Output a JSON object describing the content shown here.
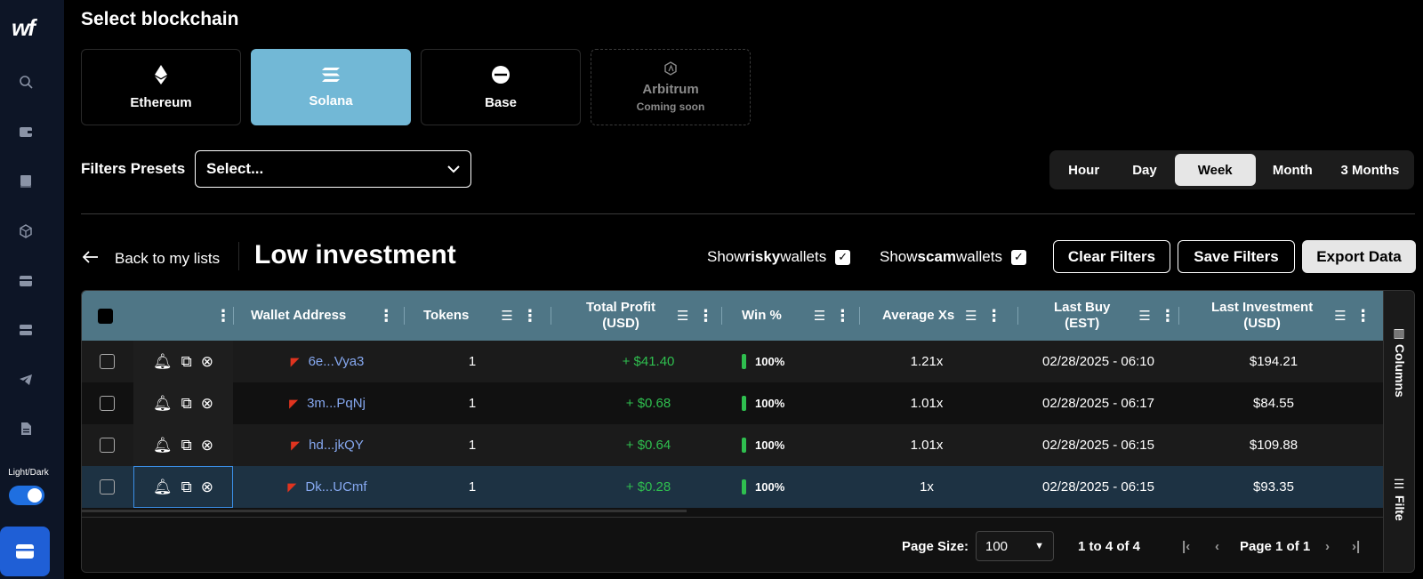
{
  "sidebar": {
    "logo": "wf",
    "icons": [
      "search-icon",
      "wallet-icon",
      "book-icon",
      "cube-icon",
      "card-icon",
      "server-icon",
      "telegram-icon",
      "document-icon"
    ],
    "theme_label": "Light/Dark"
  },
  "blockchain": {
    "heading": "Select blockchain",
    "cards": [
      {
        "label": "Ethereum",
        "icon": "ethereum-icon"
      },
      {
        "label": "Solana",
        "icon": "solana-icon",
        "active": true
      },
      {
        "label": "Base",
        "icon": "base-icon"
      },
      {
        "label": "Arbitrum",
        "sub": "Coming soon",
        "icon": "arbitrum-icon"
      }
    ]
  },
  "filters": {
    "presets_label": "Filters Presets",
    "preset_value": "Select..."
  },
  "time_range": {
    "options": [
      "Hour",
      "Day",
      "Week",
      "Month",
      "3 Months"
    ],
    "active": "Week"
  },
  "list": {
    "back_label": "Back to my lists",
    "title": "Low investment",
    "show_risky_prefix": "Show ",
    "show_risky_bold": "risky",
    "show_risky_suffix": " wallets",
    "show_scam_prefix": "Show ",
    "show_scam_bold": "scam",
    "show_scam_suffix": " wallets",
    "clear_filters": "Clear Filters",
    "save_filters": "Save Filters",
    "export_data": "Export Data"
  },
  "table": {
    "headers": {
      "wallet": "Wallet Address",
      "tokens": "Tokens",
      "profit_1": "Total Profit",
      "profit_2": "(USD)",
      "win": "Win %",
      "avg": "Average Xs",
      "lastbuy_1": "Last Buy",
      "lastbuy_2": "(EST)",
      "lastinv_1": "Last Investment",
      "lastinv_2": "(USD)"
    },
    "rows": [
      {
        "address": "6e...Vya3",
        "tokens": "1",
        "profit": "+ $41.40",
        "win": "100%",
        "avg": "1.21x",
        "last_buy": "02/28/2025 - 06:10",
        "last_investment": "$194.21"
      },
      {
        "address": "3m...PqNj",
        "tokens": "1",
        "profit": "+ $0.68",
        "win": "100%",
        "avg": "1.01x",
        "last_buy": "02/28/2025 - 06:17",
        "last_investment": "$84.55"
      },
      {
        "address": "hd...jkQY",
        "tokens": "1",
        "profit": "+ $0.64",
        "win": "100%",
        "avg": "1.01x",
        "last_buy": "02/28/2025 - 06:15",
        "last_investment": "$109.88"
      },
      {
        "address": "Dk...UCmf",
        "tokens": "1",
        "profit": "+ $0.28",
        "win": "100%",
        "avg": "1x",
        "last_buy": "02/28/2025 - 06:15",
        "last_investment": "$93.35"
      }
    ],
    "side_columns": "Columns",
    "side_filters": "Filte"
  },
  "pagination": {
    "page_size_label": "Page Size:",
    "page_size": "100",
    "range": "1 to 4 of 4",
    "page_info": "Page 1 of 1"
  }
}
